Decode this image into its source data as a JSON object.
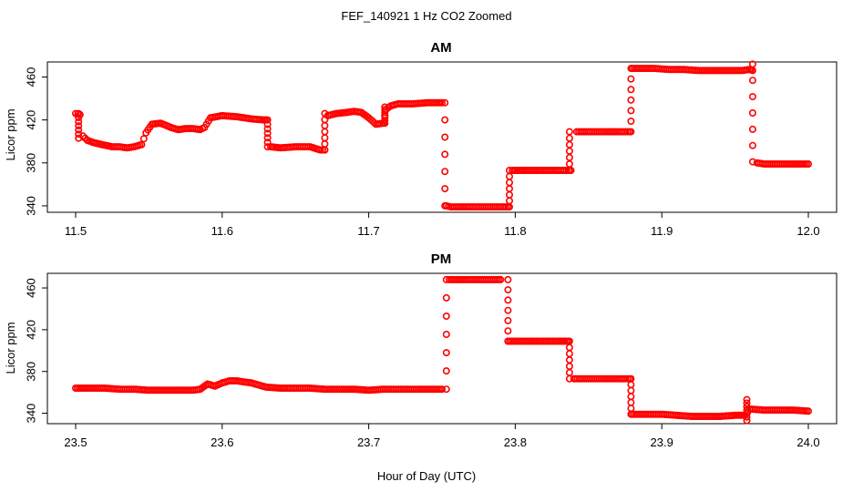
{
  "figure": {
    "title": "FEF_140921  1 Hz CO2 Zoomed",
    "xlabel": "Hour of Day (UTC)",
    "colors": {
      "points": "#ff0000",
      "axes": "#000000",
      "background": "#ffffff"
    }
  },
  "chart_data": [
    {
      "type": "scatter",
      "title": "AM",
      "ylabel": "Licor ppm",
      "xlim": [
        11.5,
        12.0
      ],
      "ylim": [
        334,
        474
      ],
      "xticks": [
        11.5,
        11.6,
        11.7,
        11.8,
        11.9,
        12.0
      ],
      "xtick_labels": [
        "11.5",
        "11.6",
        "11.7",
        "11.8",
        "11.9",
        "12.0"
      ],
      "yticks": [
        340,
        380,
        420,
        460
      ],
      "ytick_labels": [
        "340",
        "380",
        "420",
        "460"
      ],
      "grid": false,
      "marker": "open-circle",
      "series": [
        {
          "x": [
            11.5,
            11.503,
            11.505,
            11.508,
            11.512,
            11.518,
            11.525,
            11.53,
            11.535,
            11.54,
            11.545,
            11.548,
            11.552,
            11.558,
            11.565,
            11.57,
            11.575,
            11.58,
            11.585,
            11.588,
            11.592,
            11.6,
            11.61,
            11.62,
            11.628,
            11.63,
            11.633,
            11.64,
            11.65,
            11.66,
            11.667,
            11.67,
            11.672,
            11.678,
            11.685,
            11.69,
            11.695,
            11.7,
            11.705,
            11.71,
            11.712,
            11.715,
            11.72,
            11.73,
            11.74,
            11.75,
            11.753,
            11.756,
            11.76,
            11.77,
            11.78,
            11.79,
            11.795,
            11.798,
            11.805,
            11.815,
            11.825,
            11.835,
            11.838,
            11.842,
            11.85,
            11.86,
            11.87,
            11.878,
            11.88,
            11.885,
            11.895,
            11.905,
            11.915,
            11.925,
            11.935,
            11.945,
            11.955,
            11.96,
            11.962,
            11.965,
            11.97,
            11.98,
            11.99,
            12.0
          ],
          "y": [
            426,
            425,
            405,
            401,
            399,
            397,
            395,
            395,
            394,
            395,
            397,
            408,
            416,
            417,
            413,
            411,
            412,
            412,
            411,
            413,
            422,
            424,
            423,
            421,
            420,
            420,
            395,
            394,
            395,
            395,
            392,
            392,
            424,
            426,
            427,
            428,
            427,
            422,
            416,
            417,
            430,
            433,
            435,
            435,
            436,
            436,
            340,
            339,
            339,
            339,
            339,
            339,
            339,
            373,
            373,
            373,
            373,
            373,
            373,
            409,
            409,
            409,
            409,
            409,
            468,
            468,
            468,
            467,
            467,
            466,
            466,
            466,
            466,
            467,
            466,
            380,
            379,
            379,
            379,
            379
          ]
        }
      ],
      "transitions": [
        {
          "x": 11.502,
          "y": [
            426,
            403
          ]
        },
        {
          "x": 11.631,
          "y": [
            420,
            395
          ]
        },
        {
          "x": 11.67,
          "y": [
            392,
            426
          ]
        },
        {
          "x": 11.711,
          "y": [
            417,
            432
          ]
        },
        {
          "x": 11.752,
          "y": [
            436,
            340
          ]
        },
        {
          "x": 11.796,
          "y": [
            339,
            373
          ]
        },
        {
          "x": 11.837,
          "y": [
            373,
            409
          ]
        },
        {
          "x": 11.879,
          "y": [
            409,
            468
          ]
        },
        {
          "x": 11.962,
          "y": [
            472,
            381
          ]
        }
      ]
    },
    {
      "type": "scatter",
      "title": "PM",
      "ylabel": "Licor ppm",
      "xlim": [
        23.5,
        24.0
      ],
      "ylim": [
        330,
        474
      ],
      "xticks": [
        23.5,
        23.6,
        23.7,
        23.8,
        23.9,
        24.0
      ],
      "xtick_labels": [
        "23.5",
        "23.6",
        "23.7",
        "23.8",
        "23.9",
        "24.0"
      ],
      "yticks": [
        340,
        380,
        420,
        460
      ],
      "ytick_labels": [
        "340",
        "380",
        "420",
        "460"
      ],
      "grid": false,
      "marker": "open-circle",
      "series": [
        {
          "x": [
            23.5,
            23.51,
            23.52,
            23.53,
            23.54,
            23.55,
            23.56,
            23.57,
            23.58,
            23.585,
            23.59,
            23.595,
            23.6,
            23.605,
            23.61,
            23.62,
            23.625,
            23.63,
            23.64,
            23.65,
            23.66,
            23.67,
            23.68,
            23.69,
            23.7,
            23.71,
            23.72,
            23.73,
            23.74,
            23.75,
            23.755,
            23.76,
            23.77,
            23.78,
            23.79,
            23.795,
            23.8,
            23.81,
            23.82,
            23.83,
            23.836,
            23.84,
            23.85,
            23.86,
            23.87,
            23.878,
            23.88,
            23.89,
            23.9,
            23.91,
            23.92,
            23.93,
            23.94,
            23.95,
            23.957,
            23.96,
            23.97,
            23.98,
            23.99,
            24.0
          ],
          "y": [
            364,
            364,
            364,
            363,
            363,
            362,
            362,
            362,
            362,
            363,
            368,
            366,
            369,
            371,
            371,
            369,
            367,
            365,
            364,
            364,
            364,
            363,
            363,
            363,
            362,
            363,
            363,
            363,
            363,
            363,
            468,
            468,
            468,
            468,
            468,
            409,
            409,
            409,
            409,
            409,
            409,
            373,
            373,
            373,
            373,
            373,
            339,
            339,
            339,
            338,
            337,
            337,
            337,
            338,
            338,
            344,
            343,
            343,
            343,
            342
          ]
        }
      ],
      "transitions": [
        {
          "x": 23.753,
          "y": [
            363,
            468
          ]
        },
        {
          "x": 23.795,
          "y": [
            468,
            409
          ]
        },
        {
          "x": 23.837,
          "y": [
            409,
            373
          ]
        },
        {
          "x": 23.879,
          "y": [
            373,
            339
          ]
        },
        {
          "x": 23.958,
          "y": [
            333,
            353
          ]
        }
      ]
    }
  ]
}
